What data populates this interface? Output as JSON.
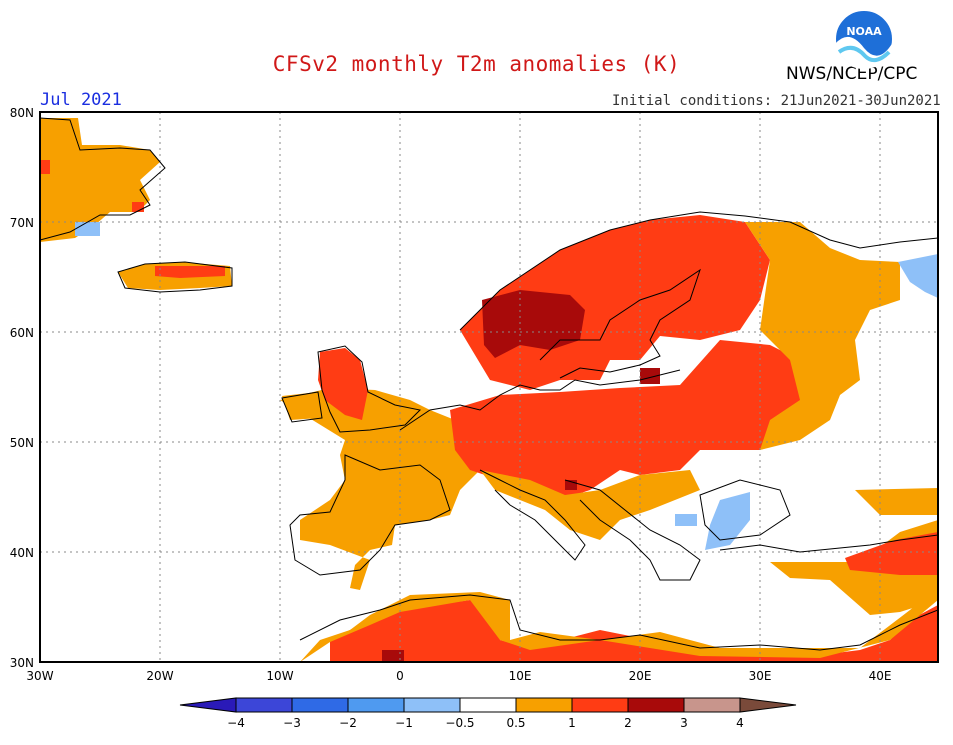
{
  "header": {
    "title": "CFSv2 monthly T2m anomalies (K)",
    "month": "Jul 2021",
    "agency": "NWS/NCEP/CPC",
    "init_conditions": "Initial conditions: 21Jun2021-30Jun2021",
    "logo_text": "NOAA"
  },
  "map": {
    "lat_labels": [
      "80N",
      "70N",
      "60N",
      "50N",
      "40N",
      "30N"
    ],
    "lon_labels": [
      "30W",
      "20W",
      "10W",
      "0",
      "10E",
      "20E",
      "30E",
      "40E"
    ],
    "projection": "lat-lon",
    "extent": {
      "lon": [
        -30,
        45
      ],
      "lat": [
        30,
        80
      ]
    },
    "gridlines": "dotted"
  },
  "colorbar": {
    "labels": [
      "−4",
      "−3",
      "−2",
      "−1",
      "−0.5",
      "0.5",
      "1",
      "2",
      "3",
      "4"
    ],
    "colors": [
      "#2a1ab8",
      "#3c46d8",
      "#2f6ae6",
      "#4f9af0",
      "#8ec0f8",
      "#ffffff",
      "#f7a000",
      "#ff3c14",
      "#a80a0a",
      "#c8958c",
      "#7a4a3a"
    ]
  },
  "anomaly_colors": {
    "cold_light": "#8ec0f8",
    "neutral": "#ffffff",
    "warm_05_1": "#f7a000",
    "warm_1_2": "#ff3c14",
    "warm_2_3": "#a80a0a"
  }
}
